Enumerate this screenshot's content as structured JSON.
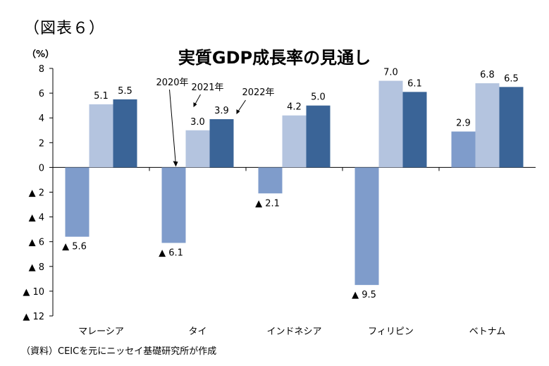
{
  "figure_label": "（図表６）",
  "unit": "（%）",
  "source": "（資料）CEICを元にニッセイ基礎研究所が作成",
  "chart_data": {
    "type": "bar",
    "title": "実質GDP成長率の見通し",
    "categories": [
      "マレーシア",
      "タイ",
      "インドネシア",
      "フィリピン",
      "ベトナム"
    ],
    "series": [
      {
        "name": "2020年",
        "values": [
          -5.6,
          -6.1,
          -2.1,
          -9.5,
          2.9
        ],
        "labels": [
          "▲ 5.6",
          "▲ 6.1",
          "▲ 2.1",
          "▲ 9.5",
          "2.9"
        ],
        "color": "#7f9ccb"
      },
      {
        "name": "2021年",
        "values": [
          5.1,
          3.0,
          4.2,
          7.0,
          6.8
        ],
        "labels": [
          "5.1",
          "3.0",
          "4.2",
          "7.0",
          "6.8"
        ],
        "color": "#b4c4df"
      },
      {
        "name": "2022年",
        "values": [
          5.5,
          3.9,
          5.0,
          6.1,
          6.5
        ],
        "labels": [
          "5.5",
          "3.9",
          "5.0",
          "6.1",
          "6.5"
        ],
        "color": "#3a6497"
      }
    ],
    "ylim": [
      -12,
      8
    ],
    "yticks": [
      8,
      6,
      4,
      2,
      0,
      -2,
      -4,
      -6,
      -8,
      -10,
      -12
    ],
    "ytick_labels": [
      "8",
      "6",
      "4",
      "2",
      "0",
      "▲ 2",
      "▲ 4",
      "▲ 6",
      "▲ 8",
      "▲ 10",
      "▲ 12"
    ],
    "legend": "annotations-on-タイ",
    "grid": false
  }
}
